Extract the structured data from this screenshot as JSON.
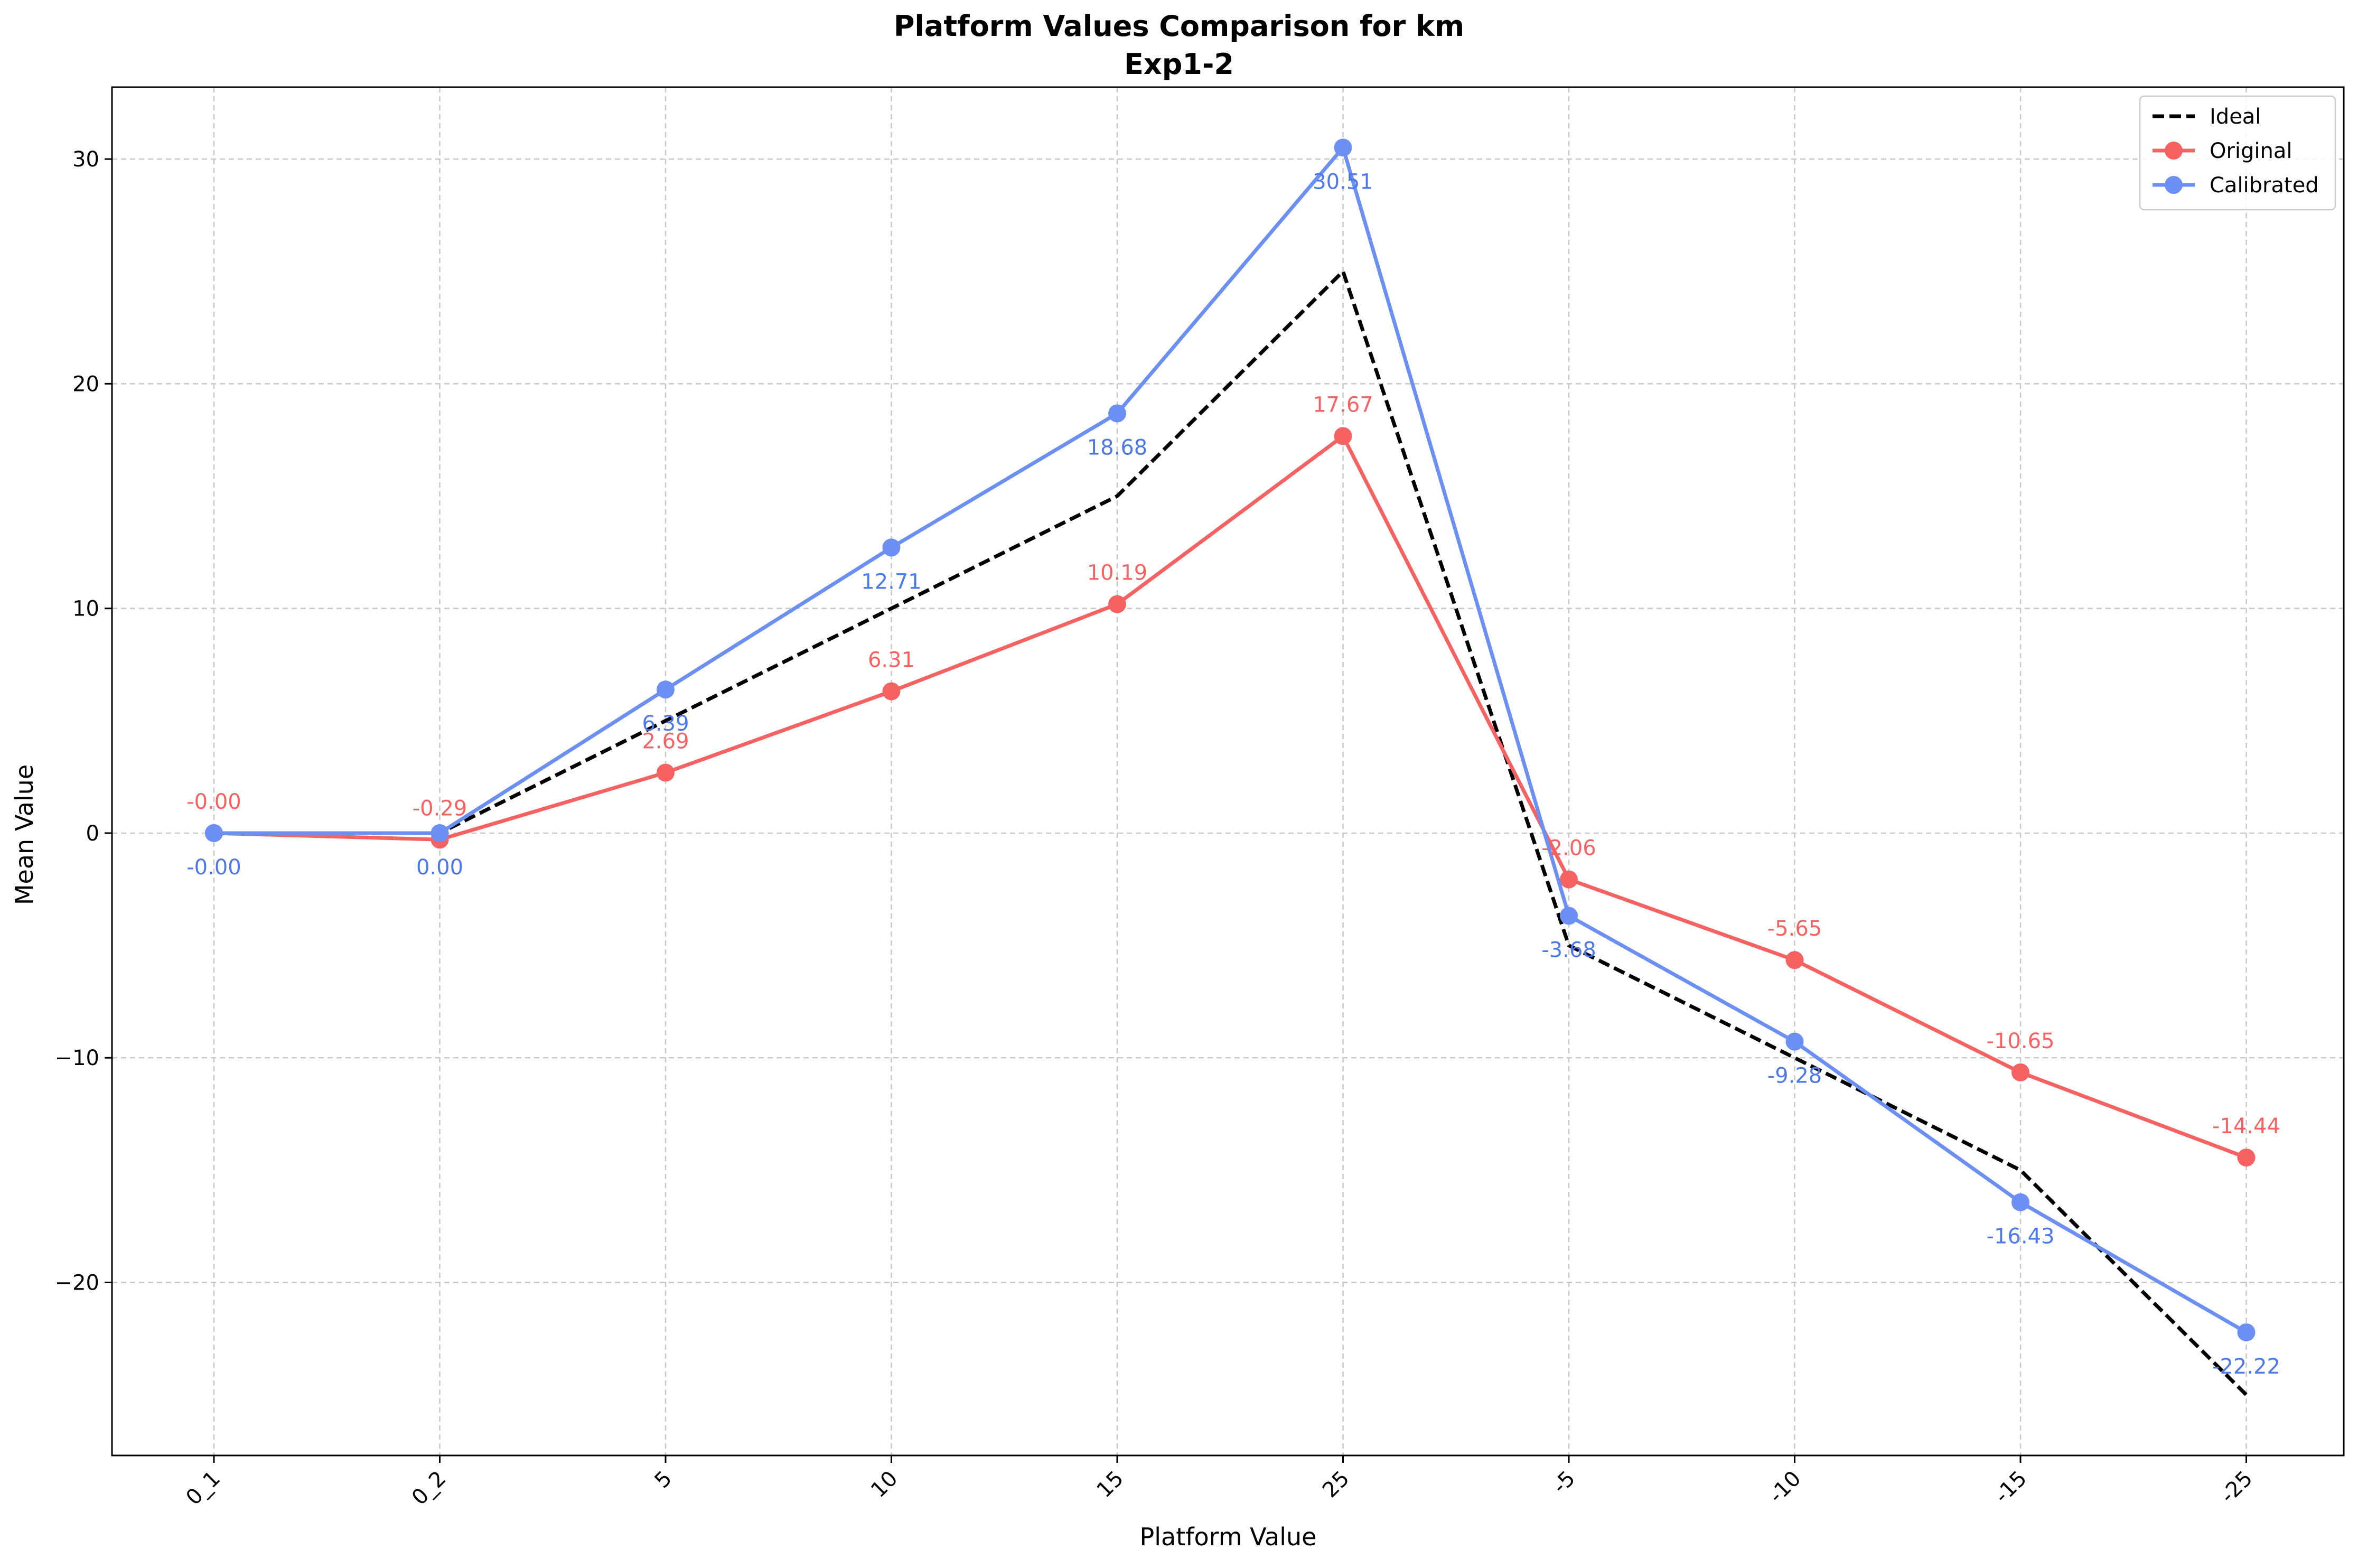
{
  "chart_data": {
    "type": "line",
    "title": "Platform Values Comparison for km",
    "subtitle": "Exp1-2",
    "xlabel": "Platform Value",
    "ylabel": "Mean Value",
    "categories": [
      "0_1",
      "0_2",
      "5",
      "10",
      "15",
      "25",
      "-5",
      "-10",
      "-15",
      "-25"
    ],
    "ylim": [
      -27.7,
      33.2
    ],
    "yticks": [
      -20,
      -10,
      0,
      10,
      20,
      30
    ],
    "ytick_labels": [
      "−20",
      "−10",
      "0",
      "10",
      "20",
      "30"
    ],
    "grid": true,
    "legend_position": "top-right",
    "series": [
      {
        "name": "Ideal",
        "color": "#000000",
        "style": "dashed",
        "marker": "none",
        "values": [
          0,
          0,
          5,
          10,
          15,
          25,
          -5,
          -10,
          -15,
          -25
        ]
      },
      {
        "name": "Original",
        "color": "#f66161",
        "style": "solid",
        "marker": "circle",
        "values": [
          0.0,
          -0.29,
          2.69,
          6.31,
          10.19,
          17.67,
          -2.06,
          -5.65,
          -10.65,
          -14.44
        ],
        "labels": [
          "-0.00",
          "-0.29",
          "2.69",
          "6.31",
          "10.19",
          "17.67",
          "-2.06",
          "-5.65",
          "-10.65",
          "-14.44"
        ],
        "label_position": "above"
      },
      {
        "name": "Calibrated",
        "color": "#6b8ff2",
        "label_color": "#4d78e8",
        "style": "solid",
        "marker": "circle",
        "values": [
          0.0,
          0.0,
          6.39,
          12.71,
          18.68,
          30.51,
          -3.68,
          -9.28,
          -16.43,
          -22.22
        ],
        "labels": [
          "-0.00",
          "0.00",
          "6.39",
          "12.71",
          "18.68",
          "30.51",
          "-3.68",
          "-9.28",
          "-16.43",
          "-22.22"
        ],
        "label_position": "below"
      }
    ]
  }
}
